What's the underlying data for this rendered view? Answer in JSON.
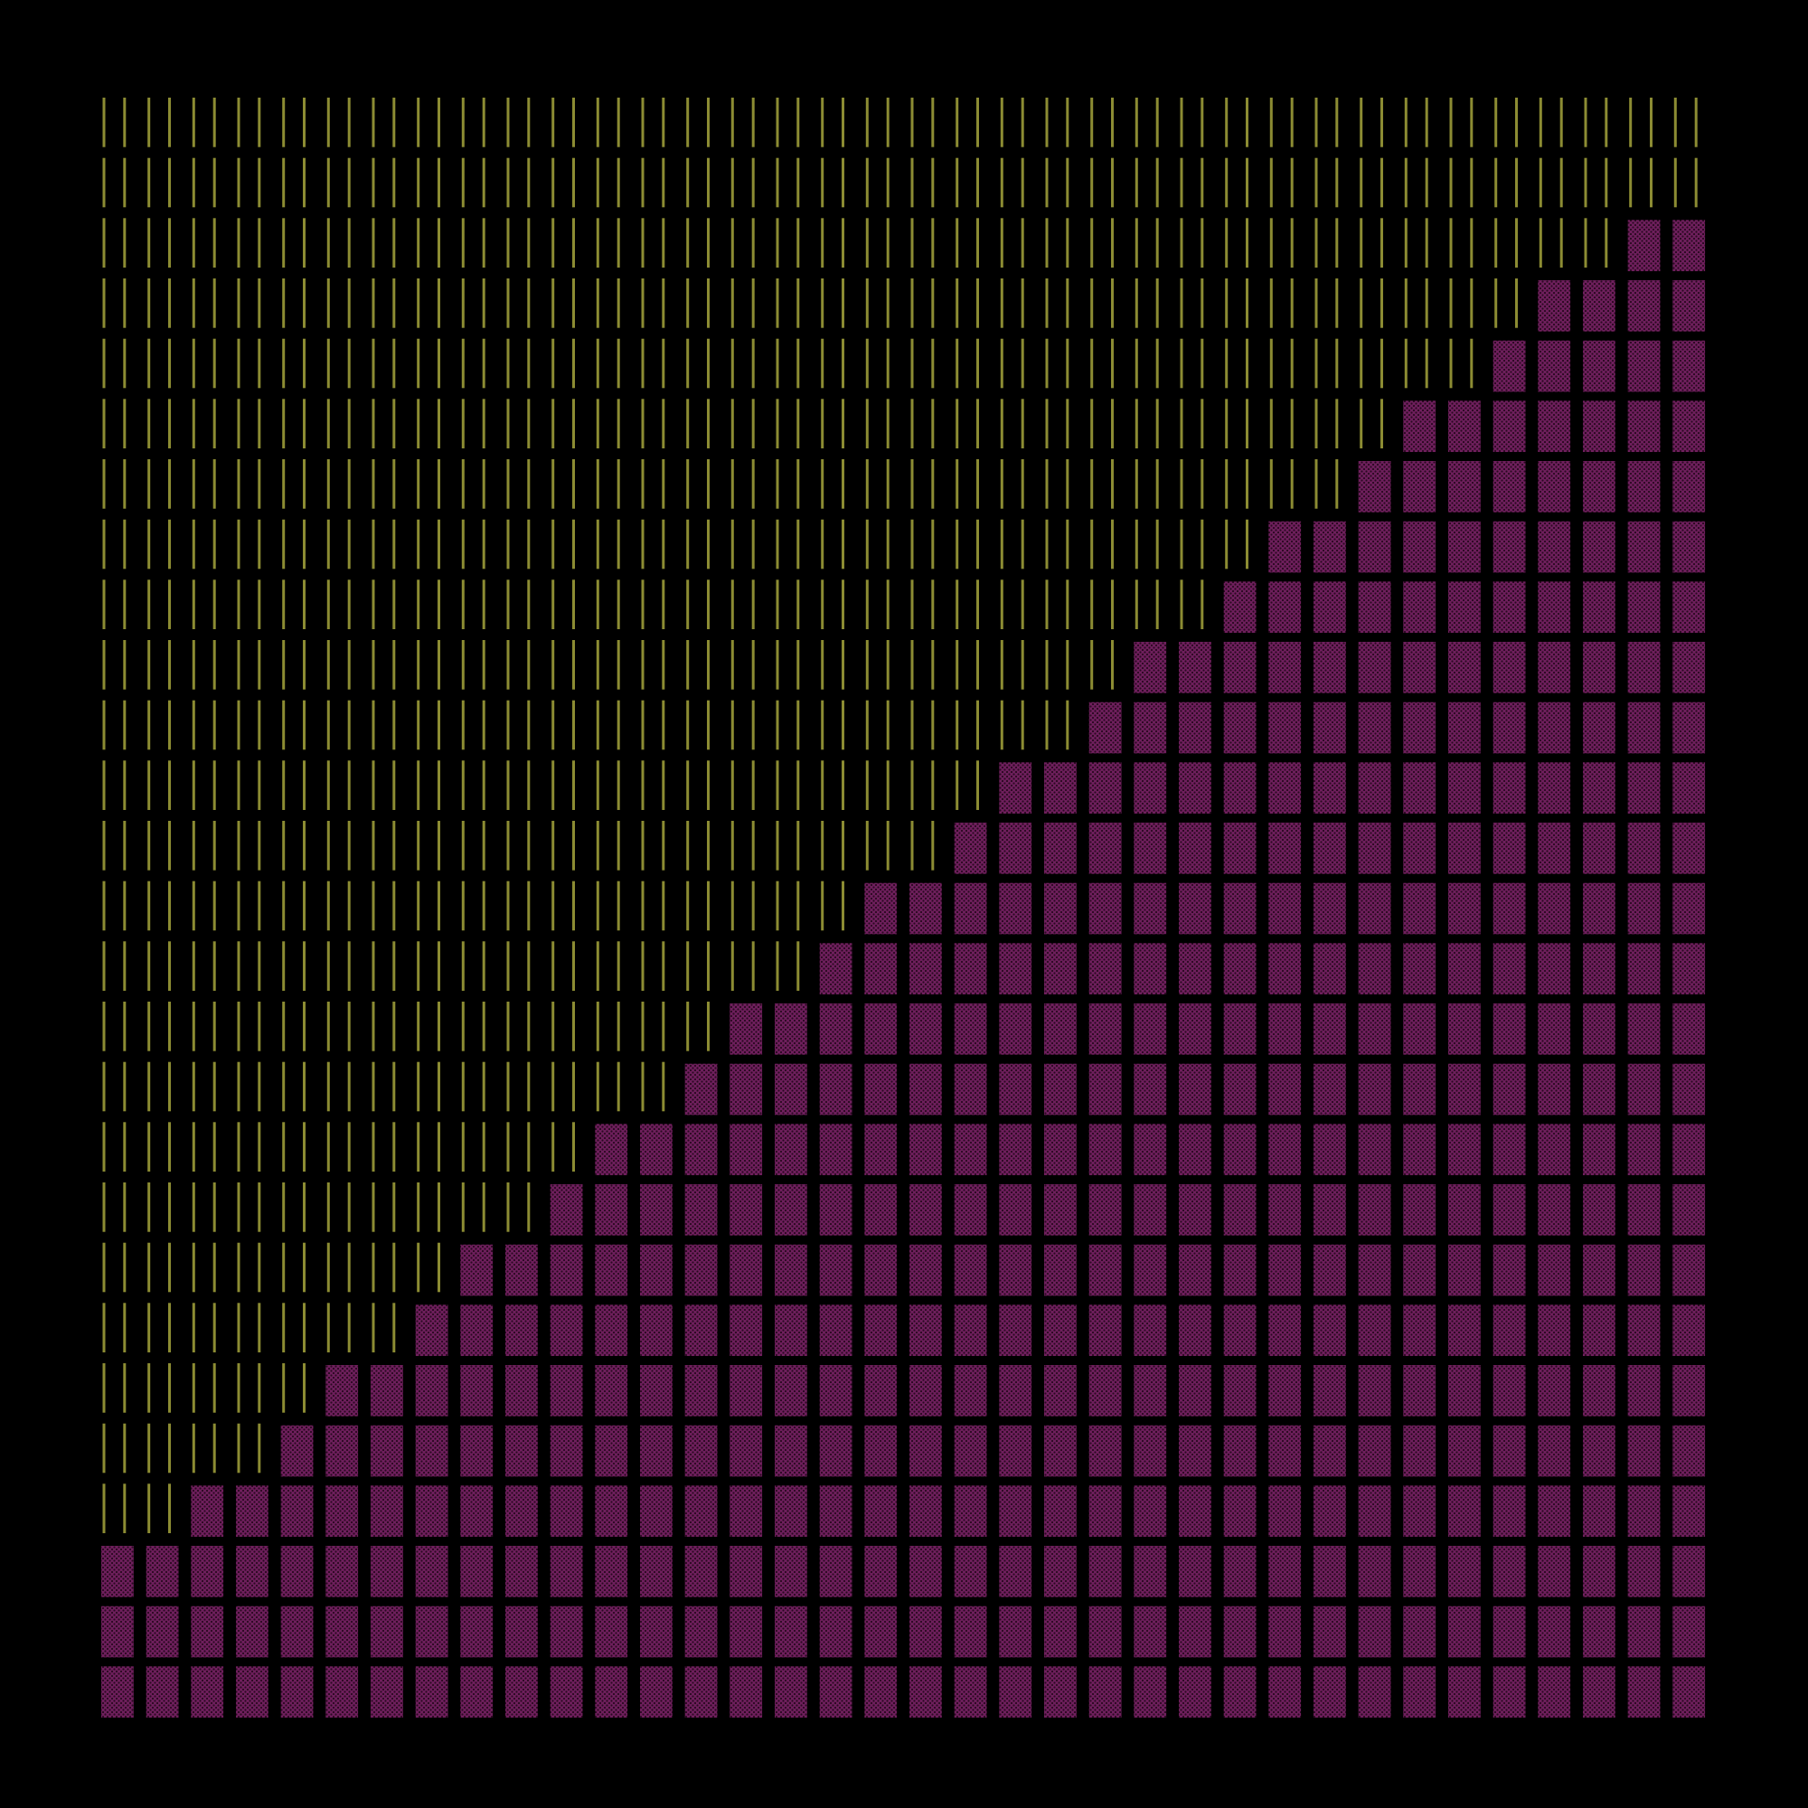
{
  "colors": {
    "background": "#000000",
    "stripe": "#8c8c33",
    "block": "#6e1f5c",
    "block_dots": "#2a0820"
  },
  "grid": {
    "columns": 36,
    "rows": 27
  },
  "staircase": {
    "description_key": "filled-block-rows-per-column",
    "filled_rows_per_column": [
      3,
      3,
      4,
      4,
      5,
      6,
      6,
      7,
      8,
      8,
      9,
      10,
      10,
      11,
      12,
      12,
      13,
      14,
      14,
      15,
      16,
      16,
      17,
      18,
      18,
      19,
      20,
      20,
      21,
      22,
      22,
      23,
      24,
      24,
      25,
      25
    ]
  }
}
